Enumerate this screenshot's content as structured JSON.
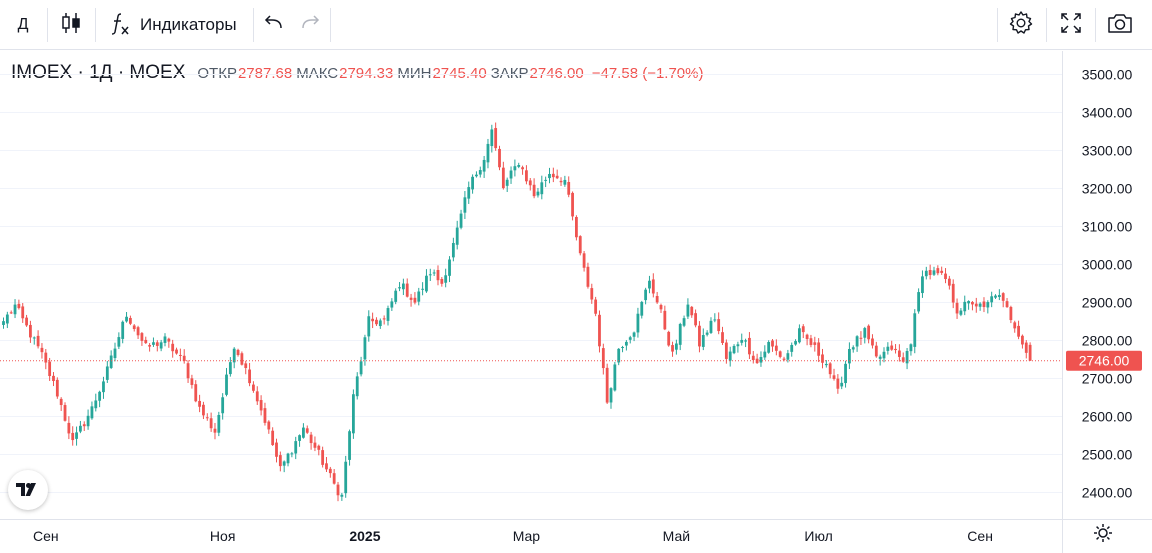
{
  "toolbar": {
    "interval": "Д",
    "indicators_label": "Индикаторы",
    "icons": [
      "candles-icon",
      "function-icon",
      "undo-icon",
      "redo-icon",
      "gear-icon",
      "fullscreen-icon",
      "camera-icon"
    ]
  },
  "legend": {
    "symbol": "IMOEX · 1Д · MOEX",
    "open_label": "ОТКР",
    "open": "2787.68",
    "high_label": "МАКС",
    "high": "2794.33",
    "low_label": "МИН",
    "low": "2745.40",
    "close_label": "ЗАКР",
    "close": "2746.00",
    "change": "−47.58 (−1.70%)"
  },
  "colors": {
    "up": "#26a69a",
    "down": "#ef5350",
    "text": "#131722",
    "grid": "#f0f3fa",
    "border": "#e0e3eb"
  },
  "chart_data": {
    "type": "candlestick",
    "title": "IMOEX · 1Д · MOEX",
    "ylim": [
      2330,
      3560
    ],
    "price_ticks": [
      "3500.00",
      "3400.00",
      "3300.00",
      "3200.00",
      "3100.00",
      "3000.00",
      "2900.00",
      "2800.00",
      "2700.00",
      "2600.00",
      "2500.00",
      "2400.00"
    ],
    "price_tick_values": [
      3500,
      3400,
      3300,
      3200,
      3100,
      3000,
      2900,
      2800,
      2700,
      2600,
      2500,
      2400
    ],
    "time_labels": [
      {
        "label": "Сен",
        "index": 0,
        "bold": false
      },
      {
        "label": "Ноя",
        "index": 0,
        "bold": false
      },
      {
        "label": "2025",
        "index": 0,
        "bold": true
      },
      {
        "label": "Мар",
        "index": 0,
        "bold": false
      },
      {
        "label": "Май",
        "index": 0,
        "bold": false
      },
      {
        "label": "Июл",
        "index": 0,
        "bold": false
      },
      {
        "label": "Сен",
        "index": 0,
        "bold": false
      }
    ],
    "time_anchor_prices": [],
    "last_price": "2746.00",
    "last_value": 2746,
    "anchors": [
      [
        0,
        2850
      ],
      [
        3,
        2890
      ],
      [
        10,
        2760
      ],
      [
        14,
        2660
      ],
      [
        18,
        2530
      ],
      [
        23,
        2620
      ],
      [
        27,
        2720
      ],
      [
        32,
        2870
      ],
      [
        37,
        2780
      ],
      [
        42,
        2800
      ],
      [
        47,
        2740
      ],
      [
        51,
        2620
      ],
      [
        55,
        2560
      ],
      [
        60,
        2790
      ],
      [
        64,
        2700
      ],
      [
        68,
        2590
      ],
      [
        72,
        2460
      ],
      [
        78,
        2570
      ],
      [
        82,
        2500
      ],
      [
        86,
        2420
      ],
      [
        88,
        2390
      ],
      [
        91,
        2650
      ],
      [
        95,
        2850
      ],
      [
        99,
        2850
      ],
      [
        103,
        2950
      ],
      [
        107,
        2900
      ],
      [
        111,
        2980
      ],
      [
        114,
        2950
      ],
      [
        117,
        3050
      ],
      [
        121,
        3200
      ],
      [
        125,
        3280
      ],
      [
        127,
        3350
      ],
      [
        130,
        3200
      ],
      [
        134,
        3270
      ],
      [
        138,
        3180
      ],
      [
        142,
        3240
      ],
      [
        146,
        3220
      ],
      [
        150,
        3020
      ],
      [
        154,
        2870
      ],
      [
        157,
        2640
      ],
      [
        160,
        2780
      ],
      [
        164,
        2830
      ],
      [
        168,
        2960
      ],
      [
        171,
        2870
      ],
      [
        174,
        2760
      ],
      [
        178,
        2900
      ],
      [
        181,
        2790
      ],
      [
        185,
        2860
      ],
      [
        188,
        2750
      ],
      [
        192,
        2810
      ],
      [
        196,
        2740
      ],
      [
        199,
        2790
      ],
      [
        203,
        2750
      ],
      [
        207,
        2820
      ],
      [
        210,
        2790
      ],
      [
        214,
        2740
      ],
      [
        217,
        2660
      ],
      [
        220,
        2780
      ],
      [
        224,
        2820
      ],
      [
        227,
        2750
      ],
      [
        231,
        2780
      ],
      [
        234,
        2740
      ],
      [
        236,
        2800
      ],
      [
        239,
        2980
      ],
      [
        242,
        2975
      ],
      [
        245,
        2960
      ],
      [
        248,
        2880
      ],
      [
        252,
        2900
      ],
      [
        255,
        2880
      ],
      [
        258,
        2925
      ],
      [
        261,
        2880
      ],
      [
        264,
        2820
      ],
      [
        267,
        2746
      ]
    ]
  }
}
